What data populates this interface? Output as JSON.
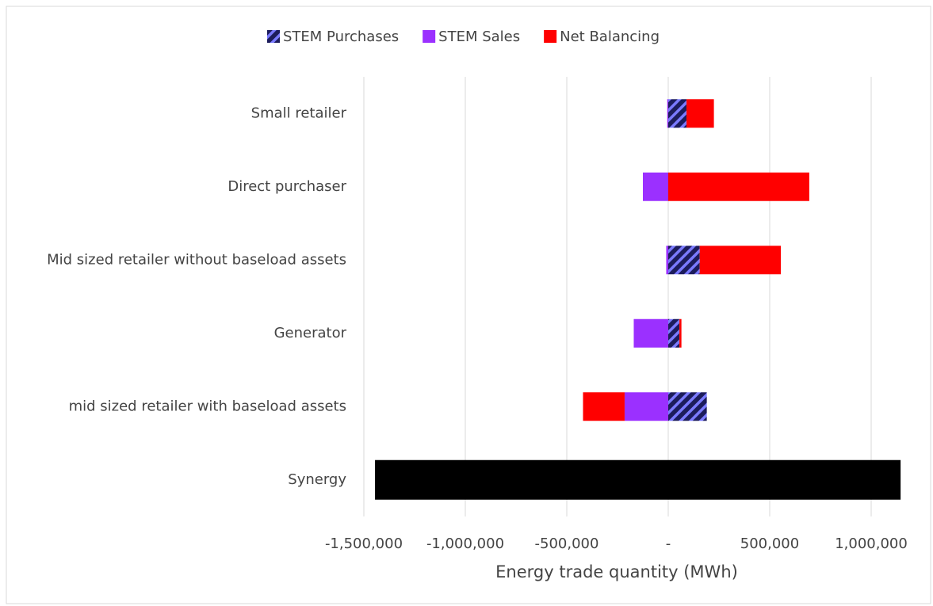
{
  "chart_data": {
    "type": "stacked_bar_horizontal",
    "xlabel": "Energy trade quantity (MWh)",
    "categories": [
      "Small retailer",
      "Direct purchaser",
      "Mid sized retailer without baseload assets",
      "Generator",
      "mid sized retailer with baseload assets",
      "Synergy"
    ],
    "series": [
      {
        "name": "STEM Purchases",
        "color": "#1c1c5c",
        "pattern": "hatch",
        "values": [
          90000,
          0,
          155000,
          55000,
          190000,
          null
        ]
      },
      {
        "name": "STEM Sales",
        "color": "#9b30ff",
        "values": [
          -5000,
          -125000,
          -10000,
          -170000,
          -215000,
          null
        ]
      },
      {
        "name": "Net Balancing",
        "color": "#ff0000",
        "values": [
          135000,
          695000,
          400000,
          10000,
          -205000,
          null
        ]
      },
      {
        "color": "#000000",
        "values": [
          null,
          null,
          null,
          null,
          null,
          1145000
        ]
      },
      {
        "color": "#000000",
        "values": [
          null,
          null,
          null,
          null,
          null,
          -1445000
        ]
      }
    ],
    "xlim": [
      -1500000,
      1250000
    ],
    "xticks": [
      {
        "value": -1500000,
        "label": "-1,500,000"
      },
      {
        "value": -1000000,
        "label": "-1,000,000"
      },
      {
        "value": -500000,
        "label": "-500,000"
      },
      {
        "value": 0,
        "label": "-"
      },
      {
        "value": 500000,
        "label": "500,000"
      },
      {
        "value": 1000000,
        "label": "1,000,000"
      }
    ],
    "grid": true,
    "legend": "top"
  }
}
